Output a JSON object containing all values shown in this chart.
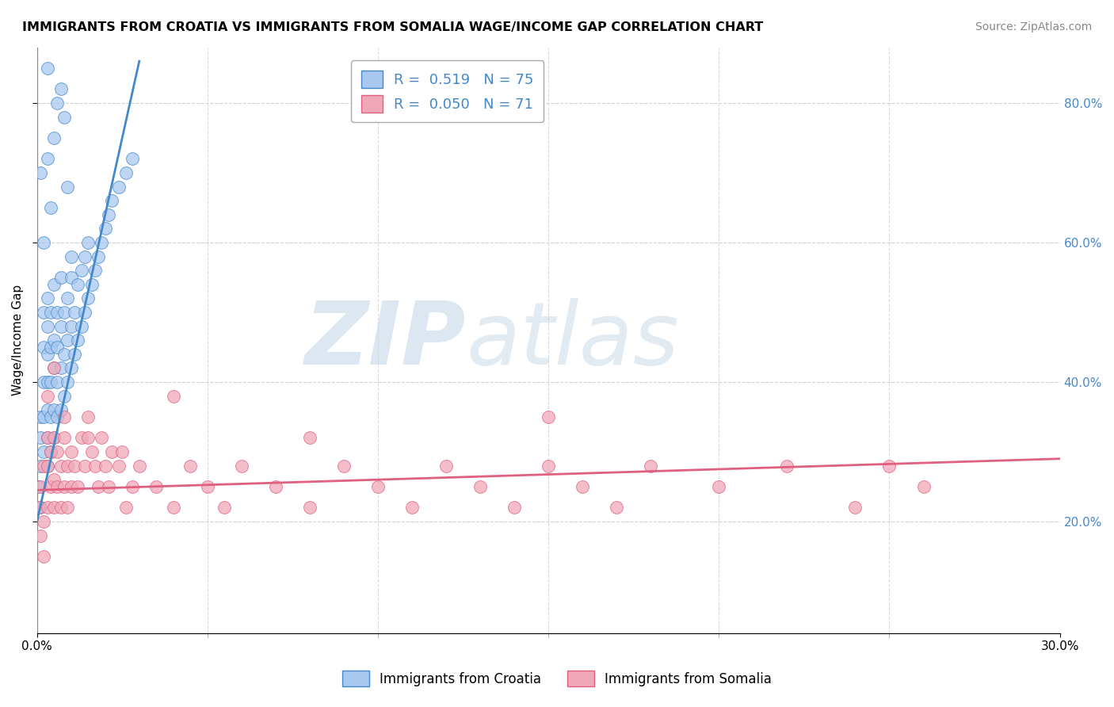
{
  "title": "IMMIGRANTS FROM CROATIA VS IMMIGRANTS FROM SOMALIA WAGE/INCOME GAP CORRELATION CHART",
  "source": "Source: ZipAtlas.com",
  "ylabel": "Wage/Income Gap",
  "xmin": 0.0,
  "xmax": 0.3,
  "ymin": 0.04,
  "ymax": 0.88,
  "yticks": [
    0.2,
    0.4,
    0.6,
    0.8
  ],
  "croatia_R": 0.519,
  "croatia_N": 75,
  "somalia_R": 0.05,
  "somalia_N": 71,
  "croatia_color": "#a8c8f0",
  "somalia_color": "#f0a8b8",
  "croatia_line_color": "#4488cc",
  "somalia_line_color": "#e06080",
  "legend_label_croatia": "Immigrants from Croatia",
  "legend_label_somalia": "Immigrants from Somalia",
  "background_color": "#ffffff",
  "grid_color": "#cccccc",
  "watermark": "ZIPatlas",
  "watermark_color": "#b8cce0",
  "croatia_line_x0": 0.0,
  "croatia_line_y0": 0.2,
  "croatia_line_x1": 0.03,
  "croatia_line_y1": 0.86,
  "somalia_line_x0": 0.0,
  "somalia_line_y0": 0.245,
  "somalia_line_x1": 0.3,
  "somalia_line_y1": 0.29,
  "croatia_scatter_x": [
    0.0005,
    0.001,
    0.001,
    0.001,
    0.001,
    0.002,
    0.002,
    0.002,
    0.002,
    0.002,
    0.003,
    0.003,
    0.003,
    0.003,
    0.003,
    0.003,
    0.003,
    0.004,
    0.004,
    0.004,
    0.004,
    0.004,
    0.005,
    0.005,
    0.005,
    0.005,
    0.005,
    0.006,
    0.006,
    0.006,
    0.006,
    0.007,
    0.007,
    0.007,
    0.007,
    0.008,
    0.008,
    0.008,
    0.009,
    0.009,
    0.009,
    0.01,
    0.01,
    0.01,
    0.011,
    0.011,
    0.012,
    0.012,
    0.013,
    0.013,
    0.014,
    0.014,
    0.015,
    0.015,
    0.016,
    0.017,
    0.018,
    0.019,
    0.02,
    0.021,
    0.022,
    0.024,
    0.026,
    0.028,
    0.001,
    0.002,
    0.003,
    0.004,
    0.005,
    0.006,
    0.007,
    0.008,
    0.009,
    0.01,
    0.003
  ],
  "croatia_scatter_y": [
    0.25,
    0.28,
    0.32,
    0.35,
    0.22,
    0.3,
    0.35,
    0.4,
    0.45,
    0.5,
    0.28,
    0.32,
    0.36,
    0.4,
    0.44,
    0.48,
    0.52,
    0.3,
    0.35,
    0.4,
    0.45,
    0.5,
    0.32,
    0.36,
    0.42,
    0.46,
    0.54,
    0.35,
    0.4,
    0.45,
    0.5,
    0.36,
    0.42,
    0.48,
    0.55,
    0.38,
    0.44,
    0.5,
    0.4,
    0.46,
    0.52,
    0.42,
    0.48,
    0.55,
    0.44,
    0.5,
    0.46,
    0.54,
    0.48,
    0.56,
    0.5,
    0.58,
    0.52,
    0.6,
    0.54,
    0.56,
    0.58,
    0.6,
    0.62,
    0.64,
    0.66,
    0.68,
    0.7,
    0.72,
    0.7,
    0.6,
    0.72,
    0.65,
    0.75,
    0.8,
    0.82,
    0.78,
    0.68,
    0.58,
    0.85
  ],
  "somalia_scatter_x": [
    0.0005,
    0.001,
    0.001,
    0.002,
    0.002,
    0.002,
    0.003,
    0.003,
    0.003,
    0.004,
    0.004,
    0.005,
    0.005,
    0.005,
    0.006,
    0.006,
    0.007,
    0.007,
    0.008,
    0.008,
    0.009,
    0.009,
    0.01,
    0.01,
    0.011,
    0.012,
    0.013,
    0.014,
    0.015,
    0.016,
    0.017,
    0.018,
    0.019,
    0.02,
    0.021,
    0.022,
    0.024,
    0.026,
    0.028,
    0.03,
    0.035,
    0.04,
    0.045,
    0.05,
    0.055,
    0.06,
    0.07,
    0.08,
    0.09,
    0.1,
    0.11,
    0.12,
    0.13,
    0.14,
    0.15,
    0.16,
    0.17,
    0.18,
    0.2,
    0.22,
    0.24,
    0.26,
    0.003,
    0.005,
    0.008,
    0.015,
    0.025,
    0.04,
    0.08,
    0.15,
    0.25
  ],
  "somalia_scatter_y": [
    0.22,
    0.18,
    0.25,
    0.2,
    0.28,
    0.15,
    0.22,
    0.28,
    0.32,
    0.25,
    0.3,
    0.22,
    0.26,
    0.32,
    0.25,
    0.3,
    0.22,
    0.28,
    0.25,
    0.32,
    0.28,
    0.22,
    0.3,
    0.25,
    0.28,
    0.25,
    0.32,
    0.28,
    0.35,
    0.3,
    0.28,
    0.25,
    0.32,
    0.28,
    0.25,
    0.3,
    0.28,
    0.22,
    0.25,
    0.28,
    0.25,
    0.22,
    0.28,
    0.25,
    0.22,
    0.28,
    0.25,
    0.22,
    0.28,
    0.25,
    0.22,
    0.28,
    0.25,
    0.22,
    0.28,
    0.25,
    0.22,
    0.28,
    0.25,
    0.28,
    0.22,
    0.25,
    0.38,
    0.42,
    0.35,
    0.32,
    0.3,
    0.38,
    0.32,
    0.35,
    0.28
  ]
}
